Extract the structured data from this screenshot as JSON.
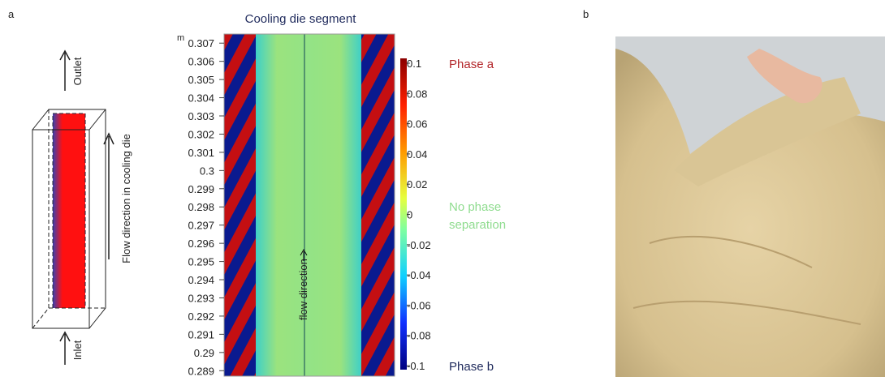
{
  "panels": {
    "a": "a",
    "b": "b"
  },
  "schematic": {
    "outlet": "Outlet",
    "inlet": "Inlet",
    "flow_label": "Flow direction in cooling die"
  },
  "simulation": {
    "title": "Cooling die segment",
    "axis_unit": "m",
    "yticks": [
      0.307,
      0.306,
      0.305,
      0.304,
      0.303,
      0.302,
      0.301,
      0.3,
      0.299,
      0.298,
      0.297,
      0.296,
      0.295,
      0.294,
      0.293,
      0.292,
      0.291,
      0.29,
      0.289
    ],
    "ylim": [
      0.2887,
      0.3075
    ],
    "flow_label": "flow direction",
    "colorbar": {
      "ticks": [
        0.1,
        0.08,
        0.06,
        0.04,
        0.02,
        0,
        -0.02,
        -0.04,
        -0.06,
        -0.08,
        -0.1
      ],
      "lim": [
        -0.1,
        0.1
      ]
    },
    "legend": {
      "phase_a": "Phase a",
      "none_1": "No phase",
      "none_2": "separation",
      "phase_b": "Phase b"
    }
  }
}
